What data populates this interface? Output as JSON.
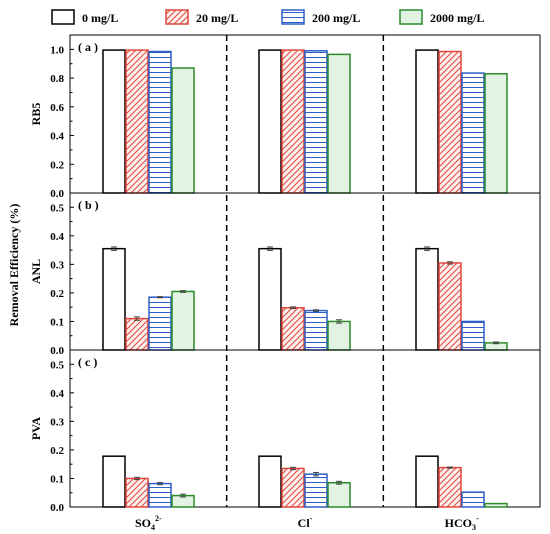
{
  "chart_data": {
    "type": "bar",
    "ylabel": "Removal Efficiency (%)",
    "categories": [
      "SO₄²⁻",
      "Cl⁻",
      "HCO₃⁻"
    ],
    "category_labels": [
      {
        "base": "SO",
        "sub": "4",
        "sup": "2-"
      },
      {
        "base": "Cl",
        "sub": "",
        "sup": "-"
      },
      {
        "base": "HCO",
        "sub": "3",
        "sup": "-"
      }
    ],
    "legend": {
      "placement": "top",
      "entries": [
        {
          "label": "0 mg/L",
          "fill": "none",
          "color": "#000000"
        },
        {
          "label": "20 mg/L",
          "fill": "diagonal",
          "color": "#e0473e"
        },
        {
          "label": "200 mg/L",
          "fill": "horizontal",
          "color": "#2e5fc6"
        },
        {
          "label": "2000 mg/L",
          "fill": "solid-light",
          "color": "#2a8a2a"
        }
      ]
    },
    "panels": [
      {
        "tag": "( a )",
        "ylabel": "RB5",
        "ylim": [
          0,
          1.1
        ],
        "yticks": [
          "0.0",
          "0.2",
          "0.4",
          "0.6",
          "0.8",
          "1.0"
        ],
        "values": [
          [
            0.995,
            0.995,
            0.985,
            0.87
          ],
          [
            0.995,
            0.995,
            0.99,
            0.965
          ],
          [
            0.995,
            0.985,
            0.835,
            0.83
          ]
        ],
        "errors": [
          [
            0,
            0,
            0,
            0
          ],
          [
            0,
            0,
            0,
            0
          ],
          [
            0,
            0,
            0,
            0
          ]
        ]
      },
      {
        "tag": "( b )",
        "ylabel": "ANL",
        "ylim": [
          0,
          0.55
        ],
        "yticks": [
          "0.0",
          "0.1",
          "0.2",
          "0.3",
          "0.4",
          "0.5"
        ],
        "values": [
          [
            0.355,
            0.11,
            0.185,
            0.205
          ],
          [
            0.355,
            0.148,
            0.138,
            0.1
          ],
          [
            0.355,
            0.305,
            0.1,
            0.025
          ]
        ],
        "errors": [
          [
            0.006,
            0.006,
            0.002,
            0.003
          ],
          [
            0.006,
            0.003,
            0.003,
            0.006
          ],
          [
            0.006,
            0.004,
            0.0,
            0.003
          ]
        ]
      },
      {
        "tag": "( c )",
        "ylabel": "PVA",
        "ylim": [
          0,
          0.55
        ],
        "yticks": [
          "0.0",
          "0.1",
          "0.2",
          "0.3",
          "0.4",
          "0.5"
        ],
        "values": [
          [
            0.178,
            0.1,
            0.082,
            0.04
          ],
          [
            0.178,
            0.135,
            0.115,
            0.085
          ],
          [
            0.178,
            0.138,
            0.052,
            0.012
          ]
        ],
        "errors": [
          [
            0,
            0.004,
            0.004,
            0.005
          ],
          [
            0,
            0.004,
            0.006,
            0.005
          ],
          [
            0,
            0.002,
            0,
            0
          ]
        ]
      }
    ]
  }
}
